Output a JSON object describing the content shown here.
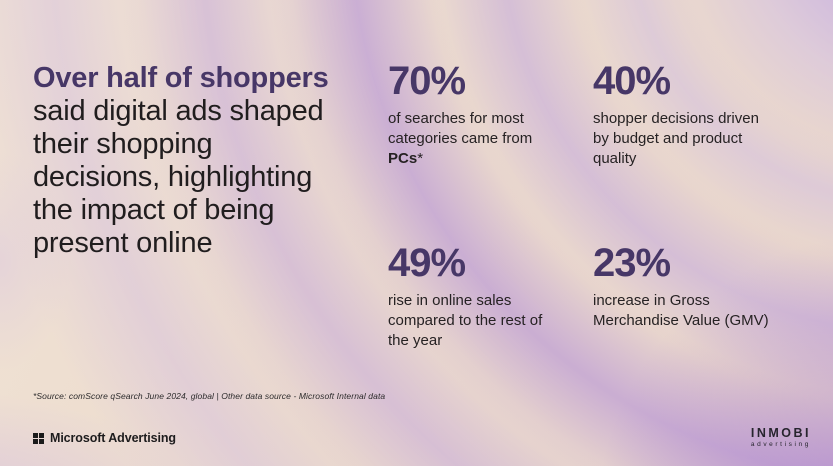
{
  "headline": {
    "bold": "Over half of shoppers",
    "regular": " said digital ads shaped their shopping decisions, highlighting the impact of being present online"
  },
  "stats": [
    {
      "value": "70%",
      "desc_prefix": "of searches for most categories came from ",
      "desc_bold": "PCs",
      "desc_suffix": "*"
    },
    {
      "value": "40%",
      "desc": "shopper decisions driven by budget and product quality"
    },
    {
      "value": "49%",
      "desc": "rise in online sales compared to the rest of the year"
    },
    {
      "value": "23%",
      "desc": "increase in Gross Merchandise Value (GMV)"
    }
  ],
  "footnote": "*Source: comScore qSearch June 2024, global | Other data source - Microsoft Internal data",
  "footer": {
    "microsoft_logo_text": "Microsoft Advertising",
    "inmobi_logo_text": "INMOBI",
    "inmobi_logo_subtext": "advertising"
  },
  "colors": {
    "background_beige": "#ecdccd",
    "accent_purple": "#473767",
    "body_text": "#201d1e",
    "swirl_lavender": "#c4a6dc",
    "swirl_deep_purple": "#a87ccc",
    "logo_black": "#1b1b1b"
  }
}
